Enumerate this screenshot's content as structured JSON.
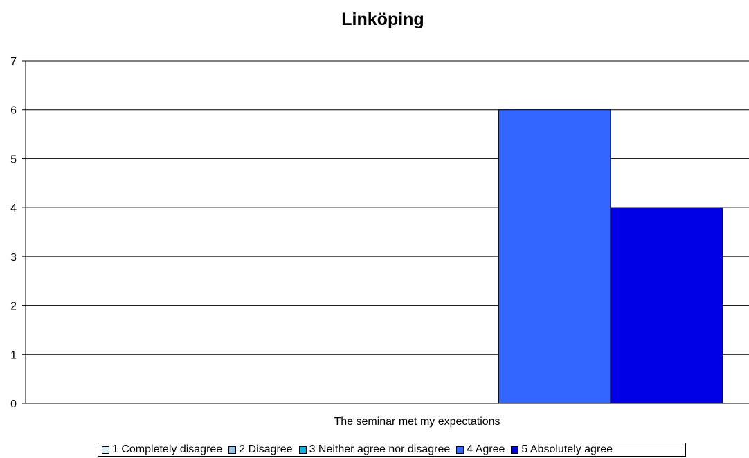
{
  "chart_data": {
    "type": "bar",
    "title": "Linköping",
    "categories": [
      "The seminar met my expectations"
    ],
    "series": [
      {
        "name": "1 Completely disagree",
        "color": "#d9f3f7",
        "values": [
          0
        ]
      },
      {
        "name": "2 Disagree",
        "color": "#8ec8ef",
        "values": [
          0
        ]
      },
      {
        "name": "3 Neither agree nor disagree",
        "color": "#10b4e6",
        "values": [
          0
        ]
      },
      {
        "name": "4 Agree",
        "color": "#3366ff",
        "values": [
          6
        ]
      },
      {
        "name": "5 Absolutely agree",
        "color": "#0000e6",
        "values": [
          4
        ]
      }
    ],
    "xlabel": "",
    "ylabel": "",
    "ylim": [
      0,
      7
    ],
    "yticks": [
      0,
      1,
      2,
      3,
      4,
      5,
      6,
      7
    ],
    "grid": true,
    "legend": "bottom"
  }
}
